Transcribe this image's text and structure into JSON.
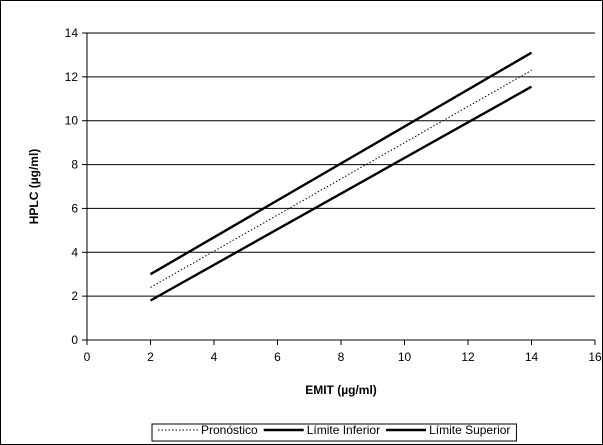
{
  "chart_data": {
    "type": "line",
    "title": "",
    "xlabel": "EMIT (µg/ml)",
    "ylabel": "HPLC (µg/ml)",
    "xlim": [
      0,
      16
    ],
    "ylim": [
      0,
      14
    ],
    "xticks": [
      0,
      2,
      4,
      6,
      8,
      10,
      12,
      14,
      16
    ],
    "yticks": [
      0,
      2,
      4,
      6,
      8,
      10,
      12,
      14
    ],
    "grid": "horizontal",
    "legend_position": "bottom",
    "series": [
      {
        "name": "Pronóstico",
        "style": "dotted",
        "color": "#000000",
        "x": [
          2,
          14
        ],
        "y": [
          2.4,
          12.3
        ]
      },
      {
        "name": "Límite Inferior",
        "style": "solid",
        "color": "#000000",
        "x": [
          2,
          14
        ],
        "y": [
          1.8,
          11.55
        ]
      },
      {
        "name": "Límite Superior",
        "style": "solid",
        "color": "#000000",
        "x": [
          2,
          14
        ],
        "y": [
          3.0,
          13.1
        ]
      }
    ]
  }
}
